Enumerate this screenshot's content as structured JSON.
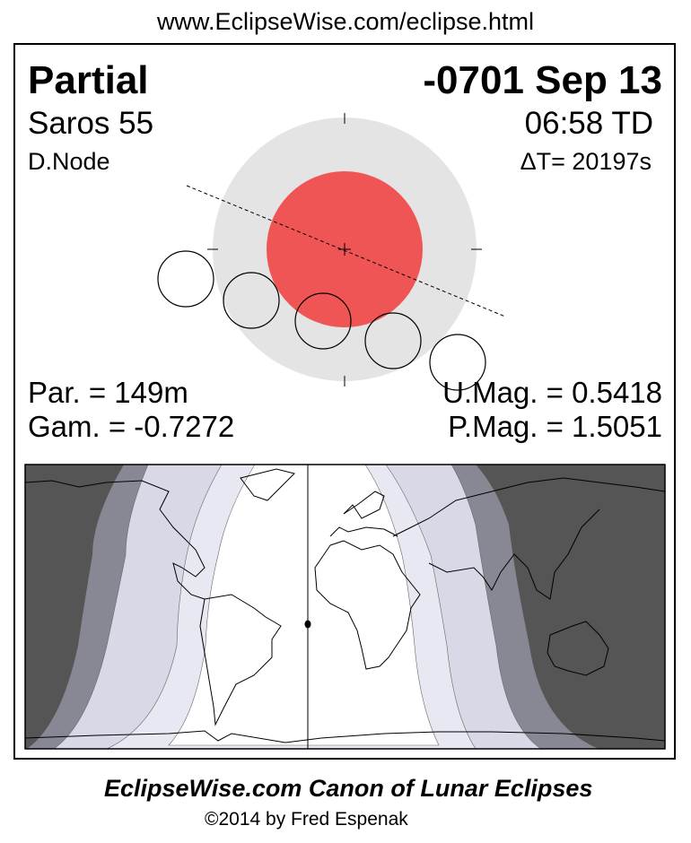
{
  "header": {
    "url": "www.EclipseWise.com/eclipse.html"
  },
  "eclipse": {
    "type": "Partial",
    "date": "-0701 Sep 13",
    "saros": "Saros  55",
    "time": "06:58 TD",
    "node": "D.Node",
    "delta_t": "ΔT=  20197s",
    "partial_duration": "Par. = 149m",
    "gamma": "Gam. = -0.7272",
    "umbral_magnitude": "U.Mag. = 0.5418",
    "penumbral_magnitude": "P.Mag. = 1.5051"
  },
  "colors": {
    "penumbra": "#e4e4e4",
    "umbra": "#f05555",
    "night": "#555555",
    "penumbral_band_dark": "#888894",
    "penumbral_band": "#d8d8e6",
    "partial_band": "#e8e8f2",
    "visible": "#ffffff"
  },
  "footer": {
    "title": "EclipseWise.com Canon of Lunar Eclipses",
    "copyright": "©2014 by Fred Espenak"
  }
}
